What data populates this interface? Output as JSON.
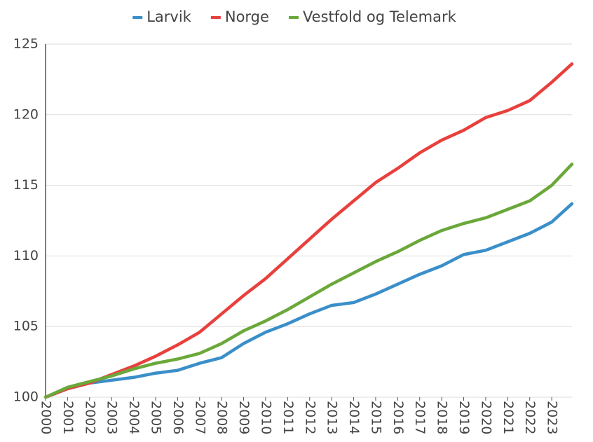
{
  "chart_data": {
    "type": "line",
    "x": [
      2000,
      2001,
      2002,
      2003,
      2004,
      2005,
      2006,
      2007,
      2008,
      2009,
      2010,
      2011,
      2012,
      2013,
      2014,
      2015,
      2016,
      2017,
      2018,
      2019,
      2020,
      2021,
      2022,
      2023,
      2023.92
    ],
    "series": [
      {
        "name": "Larvik",
        "color": "#3a8fc9",
        "values": [
          100,
          100.6,
          101.0,
          101.2,
          101.4,
          101.7,
          101.9,
          102.4,
          102.8,
          103.8,
          104.6,
          105.2,
          105.9,
          106.5,
          106.7,
          107.3,
          108.0,
          108.7,
          109.3,
          110.1,
          110.4,
          111.0,
          111.6,
          112.4,
          113.7
        ]
      },
      {
        "name": "Norge",
        "color": "#e8403d",
        "values": [
          100,
          100.6,
          101.0,
          101.6,
          102.2,
          102.9,
          103.7,
          104.6,
          105.9,
          107.2,
          108.4,
          109.8,
          111.2,
          112.6,
          113.9,
          115.2,
          116.2,
          117.3,
          118.2,
          118.9,
          119.8,
          120.3,
          121.0,
          122.3,
          123.6
        ]
      },
      {
        "name": "Vestfold og Telemark",
        "color": "#6aa83a",
        "values": [
          100,
          100.7,
          101.1,
          101.5,
          102.0,
          102.4,
          102.7,
          103.1,
          103.8,
          104.7,
          105.4,
          106.2,
          107.1,
          108.0,
          108.8,
          109.6,
          110.3,
          111.1,
          111.8,
          112.3,
          112.7,
          113.3,
          113.9,
          115.0,
          116.5
        ]
      }
    ],
    "xlim": [
      2000,
      2023.92
    ],
    "xticks": [
      2000,
      2001,
      2002,
      2003,
      2004,
      2005,
      2006,
      2007,
      2008,
      2009,
      2010,
      2011,
      2012,
      2013,
      2014,
      2015,
      2016,
      2017,
      2018,
      2019,
      2020,
      2021,
      2022,
      2023
    ],
    "ylim": [
      100,
      125
    ],
    "yticks": [
      100,
      105,
      110,
      115,
      120,
      125
    ],
    "grid": true
  }
}
